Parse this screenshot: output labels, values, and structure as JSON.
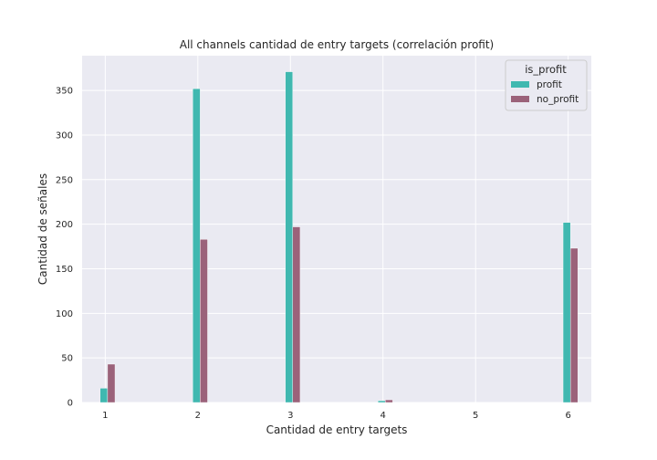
{
  "chart_data": {
    "type": "bar",
    "title": "All channels cantidad de entry targets (correlación profit)",
    "xlabel": "Cantidad de entry targets",
    "ylabel": "Cantidad de señales",
    "x_ticks": [
      "1",
      "2",
      "3",
      "4",
      "5",
      "6"
    ],
    "y_ticks": [
      "0",
      "50",
      "100",
      "150",
      "200",
      "250",
      "300",
      "350"
    ],
    "xlim": [
      0.75,
      6.25
    ],
    "ylim": [
      0,
      389
    ],
    "grid": true,
    "legend": {
      "title": "is_profit",
      "placement": "top-right"
    },
    "series": [
      {
        "name": "profit",
        "color": "#40b8b0",
        "points": [
          [
            1,
            16
          ],
          [
            2,
            352
          ],
          [
            3,
            371
          ],
          [
            4,
            2
          ],
          [
            6,
            202
          ]
        ]
      },
      {
        "name": "no_profit",
        "color": "#9b627a",
        "points": [
          [
            1,
            43
          ],
          [
            2,
            183
          ],
          [
            3,
            197
          ],
          [
            4,
            3
          ],
          [
            6,
            173
          ]
        ]
      }
    ]
  }
}
